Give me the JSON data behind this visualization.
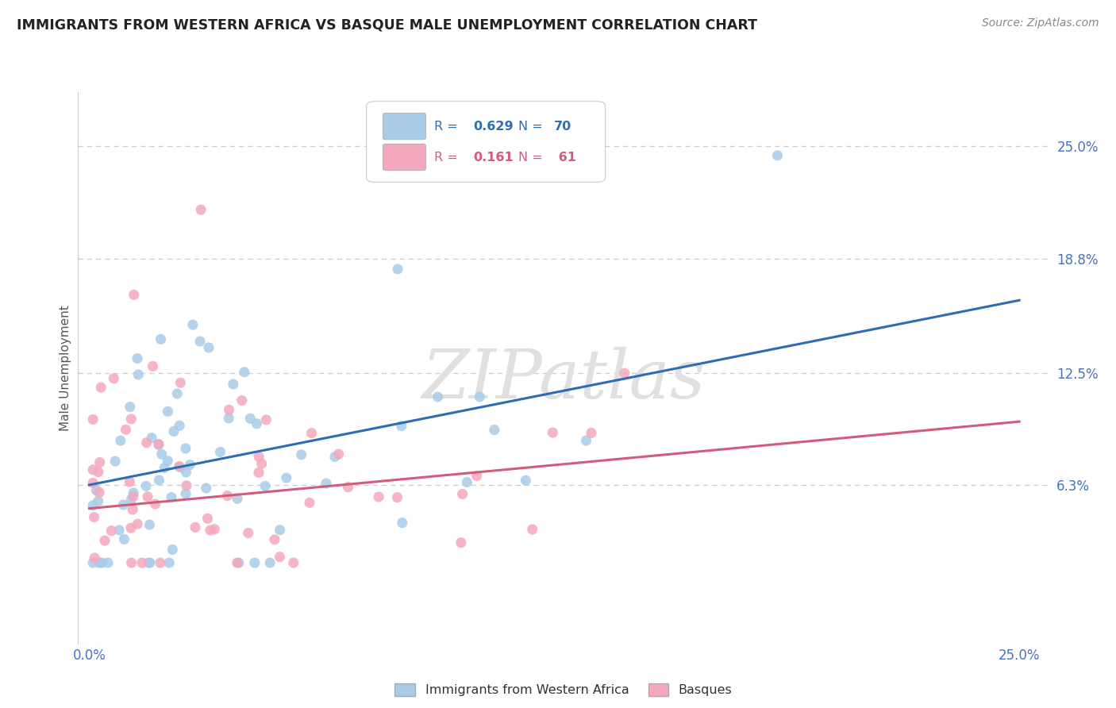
{
  "title": "IMMIGRANTS FROM WESTERN AFRICA VS BASQUE MALE UNEMPLOYMENT CORRELATION CHART",
  "source": "Source: ZipAtlas.com",
  "ylabel": "Male Unemployment",
  "legend_label_1": "Immigrants from Western Africa",
  "legend_label_2": "Basques",
  "r1": 0.629,
  "n1": 70,
  "r2": 0.161,
  "n2": 61,
  "color1": "#a8cce8",
  "color2": "#f4a8be",
  "line_color1": "#2e6db4",
  "line_color2": "#d45c7a",
  "title_color": "#222222",
  "source_color": "#888888",
  "tick_color": "#4472c4",
  "ylabel_color": "#555555",
  "grid_color": "#cccccc",
  "background_color": "#ffffff",
  "watermark": "ZIPatlas",
  "watermark_color": "#e0e0e0",
  "xlim": [
    0.0,
    0.25
  ],
  "ylim": [
    -0.025,
    0.28
  ],
  "grid_lines": [
    0.063,
    0.125,
    0.188,
    0.25
  ],
  "xtick_vals": [
    0.0,
    0.25
  ],
  "xtick_labels": [
    "0.0%",
    "25.0%"
  ],
  "ytick_labels_right": [
    "6.3%",
    "12.5%",
    "18.8%",
    "25.0%"
  ],
  "blue_line_x": [
    0.0,
    0.25
  ],
  "blue_line_y": [
    0.063,
    0.165
  ],
  "pink_line_x": [
    0.0,
    0.25
  ],
  "pink_line_y": [
    0.05,
    0.098
  ]
}
